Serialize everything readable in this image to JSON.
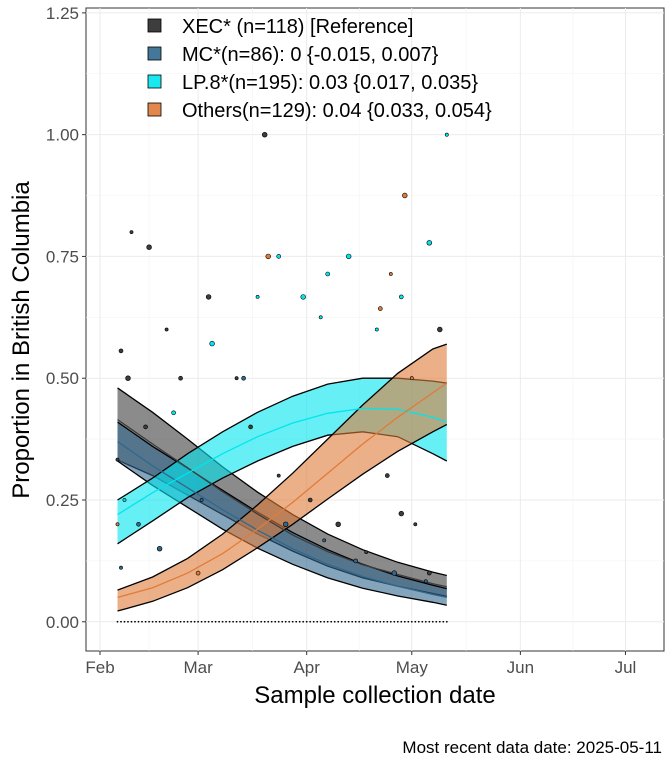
{
  "chart_data": {
    "type": "line",
    "title": "",
    "xlabel": "Sample collection date",
    "ylabel": "Proportion in British Columbia",
    "caption": "Most recent data date: 2025-05-11",
    "xlim": [
      "2025-01-28",
      "2025-07-12"
    ],
    "ylim": [
      -0.06,
      1.26
    ],
    "x_ticks": [
      {
        "date": "2025-02-01",
        "label": "Feb"
      },
      {
        "date": "2025-03-01",
        "label": "Mar"
      },
      {
        "date": "2025-04-01",
        "label": "Apr"
      },
      {
        "date": "2025-05-01",
        "label": "May"
      },
      {
        "date": "2025-06-01",
        "label": "Jun"
      },
      {
        "date": "2025-07-01",
        "label": "Jul"
      }
    ],
    "y_ticks": [
      {
        "value": 0,
        "label": "0.00"
      },
      {
        "value": 0.25,
        "label": "0.25"
      },
      {
        "value": 0.5,
        "label": "0.50"
      },
      {
        "value": 0.75,
        "label": "0.75"
      },
      {
        "value": 1.0,
        "label": "1.00"
      },
      {
        "value": 1.25,
        "label": "1.25"
      }
    ],
    "grid": true,
    "legend_position": "top-left",
    "series": [
      {
        "name": "XEC* (n=118)  [Reference]",
        "color": "#3d3d3d",
        "fit_x": [
          "2025-02-06",
          "2025-02-16",
          "2025-02-26",
          "2025-03-08",
          "2025-03-18",
          "2025-03-28",
          "2025-04-07",
          "2025-04-17",
          "2025-04-27",
          "2025-05-07",
          "2025-05-11"
        ],
        "fit": [
          0.415,
          0.365,
          0.316,
          0.267,
          0.221,
          0.178,
          0.144,
          0.117,
          0.097,
          0.078,
          0.072
        ],
        "upper": [
          0.48,
          0.43,
          0.375,
          0.318,
          0.266,
          0.22,
          0.18,
          0.148,
          0.122,
          0.102,
          0.095
        ],
        "lower": [
          0.332,
          0.3,
          0.26,
          0.22,
          0.18,
          0.145,
          0.114,
          0.09,
          0.073,
          0.058,
          0.052
        ],
        "points": [
          {
            "x": "2025-02-06",
            "y": 0.333
          },
          {
            "x": "2025-02-07",
            "y": 0.556
          },
          {
            "x": "2025-02-09",
            "y": 0.5
          },
          {
            "x": "2025-02-10",
            "y": 0.8
          },
          {
            "x": "2025-02-14",
            "y": 0.4
          },
          {
            "x": "2025-02-15",
            "y": 0.769
          },
          {
            "x": "2025-02-20",
            "y": 0.6
          },
          {
            "x": "2025-02-24",
            "y": 0.5
          },
          {
            "x": "2025-03-04",
            "y": 0.667
          },
          {
            "x": "2025-03-12",
            "y": 0.5
          },
          {
            "x": "2025-03-16",
            "y": 0.4
          },
          {
            "x": "2025-03-20",
            "y": 1.0
          },
          {
            "x": "2025-03-24",
            "y": 0.3
          },
          {
            "x": "2025-04-02",
            "y": 0.25
          },
          {
            "x": "2025-04-10",
            "y": 0.2
          },
          {
            "x": "2025-04-18",
            "y": 0.143
          },
          {
            "x": "2025-04-24",
            "y": 0.3
          },
          {
            "x": "2025-04-28",
            "y": 0.222
          },
          {
            "x": "2025-05-02",
            "y": 0.2
          },
          {
            "x": "2025-05-06",
            "y": 0.1
          },
          {
            "x": "2025-05-09",
            "y": 0.6
          }
        ]
      },
      {
        "name": "MC*(n=86): 0 {-0.015, 0.007}",
        "color": "#31688e",
        "fit_x": [
          "2025-02-06",
          "2025-02-16",
          "2025-02-26",
          "2025-03-08",
          "2025-03-18",
          "2025-03-28",
          "2025-04-07",
          "2025-04-17",
          "2025-04-27",
          "2025-05-07",
          "2025-05-11"
        ],
        "fit": [
          0.37,
          0.32,
          0.275,
          0.23,
          0.188,
          0.15,
          0.118,
          0.093,
          0.073,
          0.056,
          0.05
        ],
        "upper": [
          0.41,
          0.36,
          0.315,
          0.27,
          0.225,
          0.183,
          0.148,
          0.118,
          0.094,
          0.075,
          0.068
        ],
        "lower": [
          0.33,
          0.28,
          0.235,
          0.19,
          0.151,
          0.118,
          0.09,
          0.069,
          0.053,
          0.04,
          0.034
        ],
        "points": [
          {
            "x": "2025-02-07",
            "y": 0.111
          },
          {
            "x": "2025-02-12",
            "y": 0.2
          },
          {
            "x": "2025-02-18",
            "y": 0.15
          },
          {
            "x": "2025-03-02",
            "y": 0.25
          },
          {
            "x": "2025-03-14",
            "y": 0.5
          },
          {
            "x": "2025-03-26",
            "y": 0.2
          },
          {
            "x": "2025-04-06",
            "y": 0.167
          },
          {
            "x": "2025-04-15",
            "y": 0.125
          },
          {
            "x": "2025-04-26",
            "y": 0.1
          },
          {
            "x": "2025-05-05",
            "y": 0.083
          }
        ]
      },
      {
        "name": "LP.8*(n=195): 0.03 {0.017, 0.035}",
        "color": "#00e5ee",
        "fit_x": [
          "2025-02-06",
          "2025-02-16",
          "2025-02-26",
          "2025-03-08",
          "2025-03-18",
          "2025-03-28",
          "2025-04-07",
          "2025-04-17",
          "2025-04-27",
          "2025-05-07",
          "2025-05-11"
        ],
        "fit": [
          0.22,
          0.265,
          0.305,
          0.345,
          0.38,
          0.408,
          0.428,
          0.438,
          0.436,
          0.42,
          0.41
        ],
        "upper": [
          0.25,
          0.295,
          0.345,
          0.39,
          0.43,
          0.463,
          0.488,
          0.5,
          0.5,
          0.494,
          0.49
        ],
        "lower": [
          0.16,
          0.207,
          0.255,
          0.295,
          0.33,
          0.36,
          0.383,
          0.39,
          0.38,
          0.345,
          0.33
        ],
        "points": [
          {
            "x": "2025-02-08",
            "y": 0.25
          },
          {
            "x": "2025-02-22",
            "y": 0.429
          },
          {
            "x": "2025-03-05",
            "y": 0.571
          },
          {
            "x": "2025-03-18",
            "y": 0.667
          },
          {
            "x": "2025-03-24",
            "y": 0.75
          },
          {
            "x": "2025-03-31",
            "y": 0.667
          },
          {
            "x": "2025-04-05",
            "y": 0.625
          },
          {
            "x": "2025-04-07",
            "y": 0.714
          },
          {
            "x": "2025-04-13",
            "y": 0.75
          },
          {
            "x": "2025-04-21",
            "y": 0.6
          },
          {
            "x": "2025-04-28",
            "y": 0.667
          },
          {
            "x": "2025-05-06",
            "y": 0.778
          },
          {
            "x": "2025-05-11",
            "y": 1.0
          }
        ]
      },
      {
        "name": "Others(n=129): 0.04 {0.033, 0.054}",
        "color": "#e07b39",
        "fit_x": [
          "2025-02-06",
          "2025-02-16",
          "2025-02-26",
          "2025-03-08",
          "2025-03-18",
          "2025-03-28",
          "2025-04-07",
          "2025-04-17",
          "2025-04-27",
          "2025-05-07",
          "2025-05-11"
        ],
        "fit": [
          0.05,
          0.07,
          0.1,
          0.14,
          0.19,
          0.245,
          0.305,
          0.365,
          0.42,
          0.47,
          0.49
        ],
        "upper": [
          0.065,
          0.092,
          0.13,
          0.18,
          0.24,
          0.305,
          0.375,
          0.445,
          0.51,
          0.56,
          0.57
        ],
        "lower": [
          0.022,
          0.042,
          0.07,
          0.107,
          0.152,
          0.2,
          0.252,
          0.303,
          0.35,
          0.39,
          0.405
        ],
        "points": [
          {
            "x": "2025-02-06",
            "y": 0.2
          },
          {
            "x": "2025-03-01",
            "y": 0.1
          },
          {
            "x": "2025-03-21",
            "y": 0.75
          },
          {
            "x": "2025-04-25",
            "y": 0.714
          },
          {
            "x": "2025-04-22",
            "y": 0.643
          },
          {
            "x": "2025-04-29",
            "y": 0.875
          },
          {
            "x": "2025-05-01",
            "y": 0.5
          }
        ]
      }
    ]
  }
}
